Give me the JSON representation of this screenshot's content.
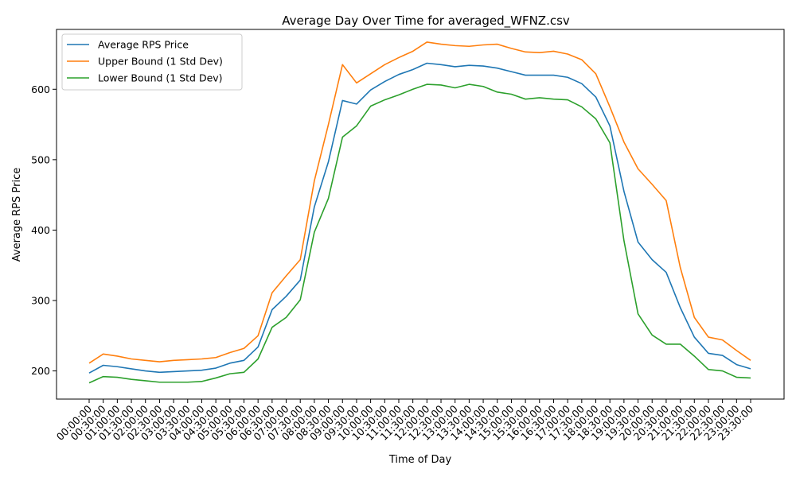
{
  "chart_data": {
    "type": "line",
    "title": "Average Day Over Time for averaged_WFNZ.csv",
    "xlabel": "Time of Day",
    "ylabel": "Average RPS Price",
    "ylim": [
      160,
      685
    ],
    "yticks": [
      200,
      300,
      400,
      500,
      600
    ],
    "legend_position": "top-left",
    "grid": false,
    "categories": [
      "00:00:00",
      "00:30:00",
      "01:00:00",
      "01:30:00",
      "02:00:00",
      "02:30:00",
      "03:00:00",
      "03:30:00",
      "04:00:00",
      "04:30:00",
      "05:00:00",
      "05:30:00",
      "06:00:00",
      "06:30:00",
      "07:00:00",
      "07:30:00",
      "08:00:00",
      "08:30:00",
      "09:00:00",
      "09:30:00",
      "10:00:00",
      "10:30:00",
      "11:00:00",
      "11:30:00",
      "12:00:00",
      "12:30:00",
      "13:00:00",
      "13:30:00",
      "14:00:00",
      "14:30:00",
      "15:00:00",
      "15:30:00",
      "16:00:00",
      "16:30:00",
      "17:00:00",
      "17:30:00",
      "18:00:00",
      "18:30:00",
      "19:00:00",
      "19:30:00",
      "20:00:00",
      "20:30:00",
      "21:00:00",
      "21:30:00",
      "22:00:00",
      "22:30:00",
      "23:00:00",
      "23:30:00"
    ],
    "series": [
      {
        "name": "Average RPS Price",
        "color": "#1f77b4",
        "values": [
          197,
          208,
          206,
          203,
          200,
          198,
          199,
          200,
          201,
          204,
          211,
          215,
          234,
          287,
          306,
          329,
          433,
          497,
          584,
          579,
          599,
          611,
          621,
          628,
          637,
          635,
          632,
          634,
          633,
          630,
          625,
          620,
          620,
          620,
          617,
          608,
          589,
          548,
          455,
          383,
          358,
          340,
          290,
          248,
          225,
          222,
          209,
          203
        ]
      },
      {
        "name": "Upper Bound (1 Std Dev)",
        "color": "#ff7f0e",
        "values": [
          211,
          224,
          221,
          217,
          215,
          213,
          215,
          216,
          217,
          219,
          226,
          232,
          250,
          311,
          335,
          358,
          470,
          550,
          635,
          609,
          622,
          635,
          645,
          654,
          667,
          664,
          662,
          661,
          663,
          664,
          658,
          653,
          652,
          654,
          650,
          642,
          622,
          575,
          525,
          487,
          465,
          442,
          347,
          276,
          248,
          244,
          229,
          215
        ]
      },
      {
        "name": "Lower Bound (1 Std Dev)",
        "color": "#2ca02c",
        "values": [
          183,
          192,
          191,
          188,
          186,
          184,
          184,
          184,
          185,
          190,
          196,
          198,
          217,
          262,
          276,
          301,
          397,
          445,
          532,
          548,
          576,
          585,
          592,
          600,
          607,
          606,
          602,
          607,
          604,
          596,
          593,
          586,
          588,
          586,
          585,
          575,
          558,
          524,
          385,
          281,
          251,
          238,
          238,
          221,
          202,
          200,
          191,
          190
        ]
      }
    ]
  }
}
